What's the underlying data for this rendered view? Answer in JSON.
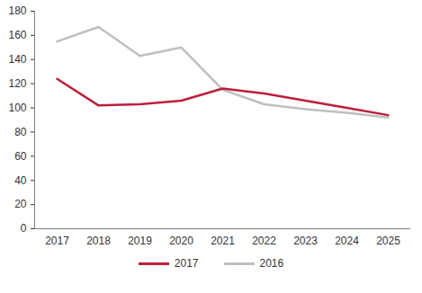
{
  "chart_data": {
    "type": "line",
    "categories": [
      "2017",
      "2018",
      "2019",
      "2020",
      "2021",
      "2022",
      "2023",
      "2024",
      "2025"
    ],
    "series": [
      {
        "name": "2017",
        "color": "#be1e3c",
        "values": [
          124,
          102,
          103,
          106,
          116,
          112,
          106,
          100,
          94
        ]
      },
      {
        "name": "2016",
        "color": "#bfbfbf",
        "values": [
          155,
          167,
          143,
          150,
          115,
          103,
          99,
          96,
          92
        ]
      }
    ],
    "ylim": [
      0,
      180
    ],
    "yticks": [
      0,
      20,
      40,
      60,
      80,
      100,
      120,
      140,
      160,
      180
    ],
    "grid": false,
    "legend": "bottom"
  }
}
